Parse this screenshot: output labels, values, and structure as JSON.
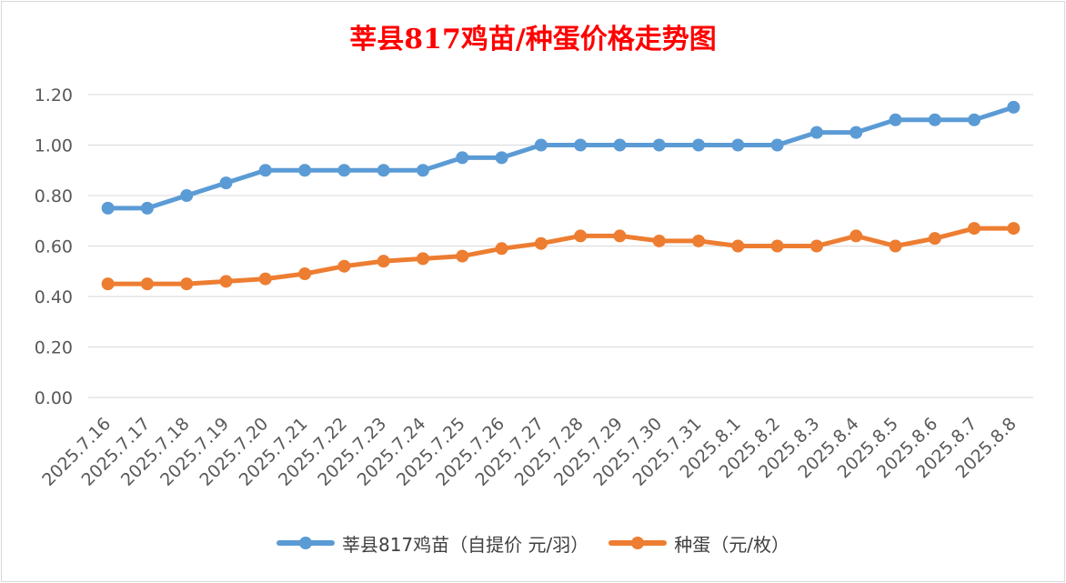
{
  "chart_data": {
    "type": "line",
    "title": "莘县817鸡苗/种蛋价格走势图",
    "categories": [
      "2025.7.16",
      "2025.7.17",
      "2025.7.18",
      "2025.7.19",
      "2025.7.20",
      "2025.7.21",
      "2025.7.22",
      "2025.7.23",
      "2025.7.24",
      "2025.7.25",
      "2025.7.26",
      "2025.7.27",
      "2025.7.28",
      "2025.7.29",
      "2025.7.30",
      "2025.7.31",
      "2025.8.1",
      "2025.8.2",
      "2025.8.3",
      "2025.8.4",
      "2025.8.5",
      "2025.8.6",
      "2025.8.7",
      "2025.8.8"
    ],
    "series": [
      {
        "name": "莘县817鸡苗（自提价 元/羽）",
        "color": "#5b9bd5",
        "values": [
          0.75,
          0.75,
          0.8,
          0.85,
          0.9,
          0.9,
          0.9,
          0.9,
          0.9,
          0.95,
          0.95,
          1.0,
          1.0,
          1.0,
          1.0,
          1.0,
          1.0,
          1.0,
          1.05,
          1.05,
          1.1,
          1.1,
          1.1,
          1.15
        ]
      },
      {
        "name": "种蛋（元/枚）",
        "color": "#ed7d31",
        "values": [
          0.45,
          0.45,
          0.45,
          0.46,
          0.47,
          0.49,
          0.52,
          0.54,
          0.55,
          0.56,
          0.59,
          0.61,
          0.64,
          0.64,
          0.62,
          0.62,
          0.6,
          0.6,
          0.6,
          0.64,
          0.6,
          0.63,
          0.67,
          0.67
        ]
      }
    ],
    "ylim": [
      0,
      1.2
    ],
    "yticks": [
      "0.00",
      "0.20",
      "0.40",
      "0.60",
      "0.80",
      "1.00",
      "1.20"
    ],
    "grid": true,
    "legend_position": "bottom"
  }
}
